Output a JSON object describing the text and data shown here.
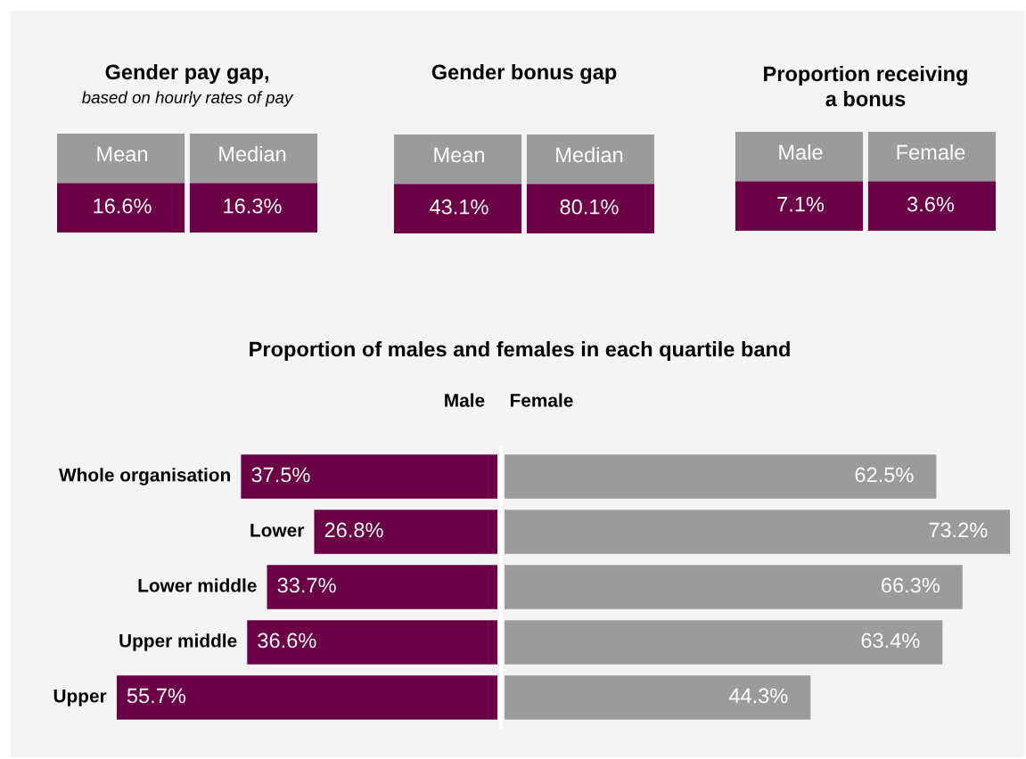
{
  "chart_data": [
    {
      "type": "other",
      "title": "Gender pay gap,",
      "subtitle": "based on hourly rates of pay",
      "categories": [
        "Mean",
        "Median"
      ],
      "value_labels": [
        "16.6%",
        "16.3%"
      ]
    },
    {
      "type": "other",
      "title": "Gender bonus gap",
      "categories": [
        "Mean",
        "Median"
      ],
      "value_labels": [
        "43.1%",
        "80.1%"
      ]
    },
    {
      "type": "other",
      "title": "Proportion receiving\na bonus",
      "categories": [
        "Male",
        "Female"
      ],
      "value_labels": [
        "7.1%",
        "3.6%"
      ]
    },
    {
      "type": "bar",
      "orientation": "horizontal",
      "title": "Proportion of males and females in each quartile band",
      "categories": [
        "Whole organisation",
        "Lower",
        "Lower middle",
        "Upper middle",
        "Upper"
      ],
      "xlim": [
        55.7,
        0
      ],
      "tick_labels": false,
      "legend": false,
      "series": [
        {
          "name": "Male",
          "color": "#6b0047",
          "values": [
            37.5,
            26.8,
            33.7,
            36.6,
            55.7
          ],
          "value_labels": [
            "37.5%",
            "26.8%",
            "33.7%",
            "36.6%",
            "55.7%"
          ]
        }
      ]
    },
    {
      "type": "bar",
      "orientation": "horizontal",
      "categories": [
        null,
        null,
        null,
        null,
        null
      ],
      "xlim": [
        0,
        73.2
      ],
      "tick_labels": false,
      "legend": false,
      "series": [
        {
          "name": "Female",
          "color": "#9b9b9b",
          "values": [
            62.5,
            73.2,
            66.3,
            63.4,
            44.3
          ],
          "value_labels": [
            "62.5%",
            "73.2%",
            "66.3%",
            "63.4%",
            "44.3%"
          ]
        }
      ]
    }
  ]
}
